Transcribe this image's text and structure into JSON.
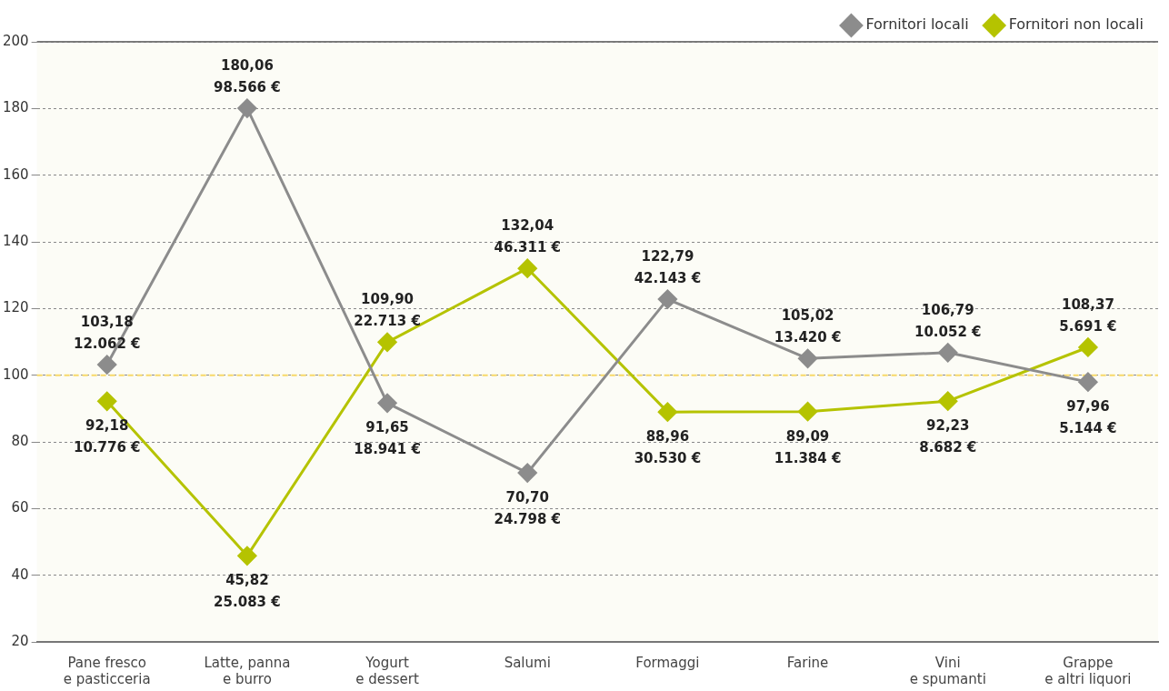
{
  "chart_data": {
    "type": "line",
    "categories": [
      "Pane fresco\ne pasticceria",
      "Latte, panna\ne burro",
      "Yogurt\ne dessert",
      "Salumi",
      "Formaggi",
      "Farine",
      "Vini\ne spumanti",
      "Grappe\ne altri liquori"
    ],
    "series": [
      {
        "name": "Fornitori locali",
        "color": "#8c8c8c",
        "values": [
          103.18,
          180.06,
          91.65,
          70.7,
          122.79,
          105.02,
          106.79,
          97.96
        ],
        "value_labels": [
          "103,18\n12.062 €",
          "180,06\n98.566 €",
          "91,65\n18.941 €",
          "70,70\n24.798 €",
          "122,79\n42.143 €",
          "105,02\n13.420 €",
          "106,79\n10.052 €",
          "97,96\n5.144 €"
        ]
      },
      {
        "name": "Fornitori non locali",
        "color": "#b5c300",
        "values": [
          92.18,
          45.82,
          109.9,
          132.04,
          88.96,
          89.09,
          92.23,
          108.37
        ],
        "value_labels": [
          "92,18\n10.776 €",
          "45,82\n25.083 €",
          "109,90\n22.713 €",
          "132,04\n46.311 €",
          "88,96\n30.530 €",
          "89,09\n11.384 €",
          "92,23\n8.682 €",
          "108,37\n5.691 €"
        ]
      }
    ],
    "ylim": [
      20,
      200
    ],
    "yticks": [
      20,
      40,
      60,
      80,
      100,
      120,
      140,
      160,
      180,
      200
    ],
    "grid": "y",
    "legend": "top right",
    "marker": "diamond",
    "line_style": "solid",
    "ref_lines": [
      {
        "axis": "y",
        "value": 100,
        "color": "#f7d96a",
        "line_style": "dashed"
      }
    ]
  }
}
